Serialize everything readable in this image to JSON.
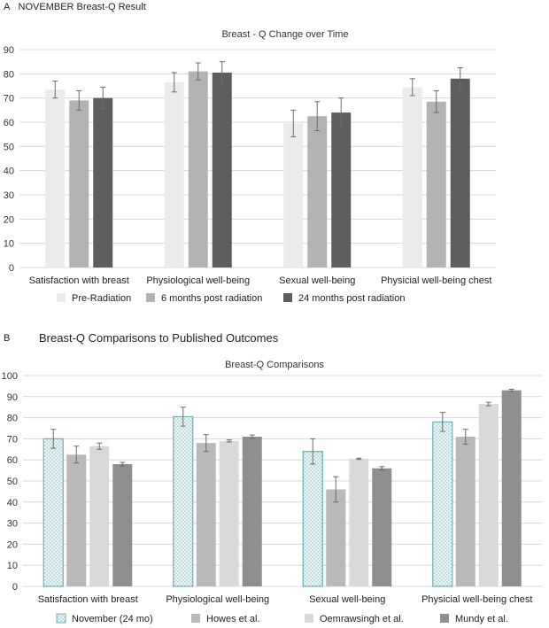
{
  "figure": {
    "panel_a_letter": "A",
    "panel_a_heading": "NOVEMBER Breast-Q Result",
    "panel_b_letter": "B",
    "panel_b_heading": "Breast-Q Comparisons to Published Outcomes"
  },
  "colors": {
    "pre_radiation": "#ececec",
    "six_months": "#b3b3b3",
    "twenty_four_months": "#5e5e5e",
    "november_fill": "#eef5f6",
    "november_border": "#6fb0b9",
    "howes": "#b9b9b9",
    "oemrawsingh": "#d9d9d9",
    "mundy": "#8f8f8f",
    "gridline": "#d9d9d9",
    "error_bar": "#6b6b6b"
  },
  "chart_data": [
    {
      "type": "bar",
      "title": "Breast - Q Change over Time",
      "categories": [
        "Satisfaction with breast",
        "Physiological well-being",
        "Sexual well-being",
        "Physicial well-being chest"
      ],
      "ylim": [
        0,
        90
      ],
      "yticks": [
        0,
        10,
        20,
        30,
        40,
        50,
        60,
        70,
        80,
        90
      ],
      "grid": true,
      "legend_position": "bottom",
      "series": [
        {
          "name": "Pre-Radiation",
          "values": [
            73.5,
            76.5,
            59.5,
            74.5
          ],
          "errors": [
            3.5,
            4,
            5.5,
            3.5
          ],
          "color_key": "pre_radiation"
        },
        {
          "name": "6 months post radiation",
          "values": [
            69,
            81,
            62.5,
            68.5
          ],
          "errors": [
            4,
            3.5,
            6,
            4.5
          ],
          "color_key": "six_months"
        },
        {
          "name": "24 months post radiation",
          "values": [
            70,
            80.5,
            64,
            78
          ],
          "errors": [
            4.5,
            4.5,
            6,
            4.5
          ],
          "color_key": "twenty_four_months"
        }
      ]
    },
    {
      "type": "bar",
      "title": "Breast-Q Comparisons",
      "categories": [
        "Satisfaction with breast",
        "Physiological well-being",
        "Sexual well-being",
        "Physicial well-being chest"
      ],
      "ylim": [
        0,
        100
      ],
      "yticks": [
        0,
        10,
        20,
        30,
        40,
        50,
        60,
        70,
        80,
        90,
        100
      ],
      "grid": true,
      "legend_position": "bottom",
      "series": [
        {
          "name": "November (24 mo)",
          "values": [
            70,
            80.5,
            64,
            78
          ],
          "errors": [
            4.5,
            4.5,
            6,
            4.5
          ],
          "color_key": "november_fill",
          "pattern": "dotted"
        },
        {
          "name": "Howes et al.",
          "values": [
            62.5,
            68,
            46,
            71
          ],
          "errors": [
            4,
            4,
            6,
            3.5
          ],
          "color_key": "howes"
        },
        {
          "name": "Oemrawsingh et al.",
          "values": [
            66.5,
            69,
            60.5,
            86.5
          ],
          "errors": [
            1.5,
            0.5,
            0.3,
            0.8
          ],
          "color_key": "oemrawsingh"
        },
        {
          "name": "Mundy et al.",
          "values": [
            58,
            71,
            56,
            93
          ],
          "errors": [
            0.8,
            0.8,
            0.8,
            0.5
          ],
          "color_key": "mundy"
        }
      ]
    }
  ]
}
